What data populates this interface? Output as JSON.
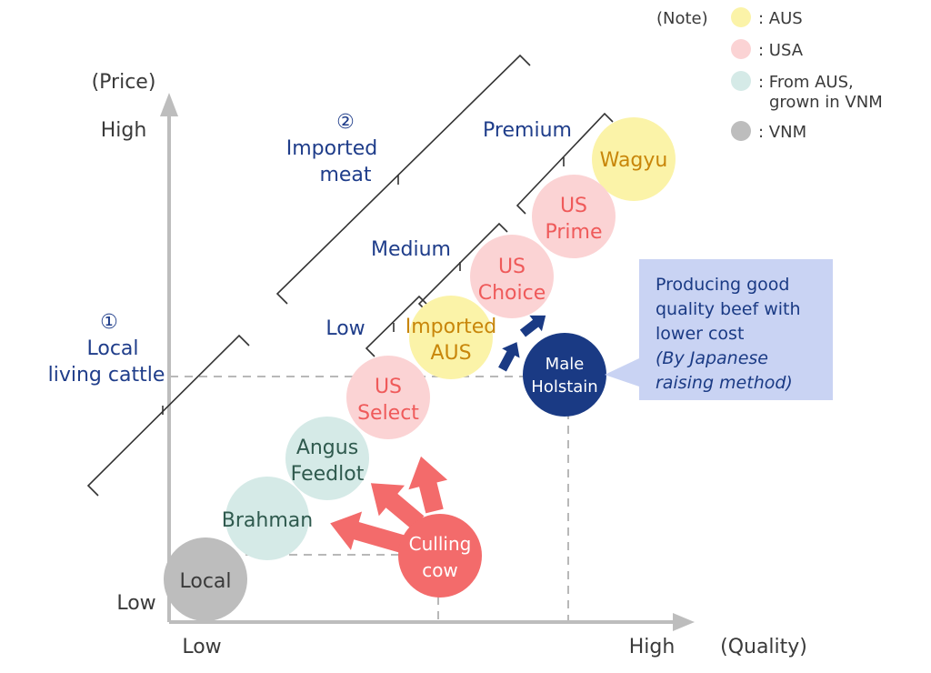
{
  "axes": {
    "y_title": "(Price)",
    "y_high": "High",
    "y_low": "Low",
    "x_title": "(Quality)",
    "x_high": "High",
    "x_low": "Low"
  },
  "legend": {
    "title": "(Note)",
    "items": [
      {
        "color": "#fbf3a8",
        "label_lines": [
          ": AUS"
        ]
      },
      {
        "color": "#fbd3d4",
        "label_lines": [
          ": USA"
        ]
      },
      {
        "color": "#d5eae7",
        "label_lines": [
          ": From AUS,",
          "grown in VNM"
        ]
      },
      {
        "color": "#bdbdbd",
        "label_lines": [
          ": VNM"
        ]
      }
    ]
  },
  "groups": {
    "imported": {
      "number": "②",
      "lines": [
        "Imported",
        "meat"
      ]
    },
    "local": {
      "number": "①",
      "lines": [
        "Local",
        "living cattle"
      ]
    },
    "premium": "Premium",
    "medium": "Medium",
    "low": "Low"
  },
  "products": [
    {
      "id": "wagyu",
      "lines": [
        "Wagyu"
      ],
      "fill": "#fbf3a8",
      "text_color": "#c8860a"
    },
    {
      "id": "us-prime",
      "lines": [
        "US",
        "Prime"
      ],
      "fill": "#fbd3d4",
      "text_color": "#ef5a5a"
    },
    {
      "id": "us-choice",
      "lines": [
        "US",
        "Choice"
      ],
      "fill": "#fbd3d4",
      "text_color": "#ef5a5a"
    },
    {
      "id": "imported-aus",
      "lines": [
        "Imported",
        "AUS"
      ],
      "fill": "#fbf3a8",
      "text_color": "#c8860a"
    },
    {
      "id": "us-select",
      "lines": [
        "US",
        "Select"
      ],
      "fill": "#fbd3d4",
      "text_color": "#ef5a5a"
    },
    {
      "id": "angus-feedlot",
      "lines": [
        "Angus",
        "Feedlot"
      ],
      "fill": "#d5eae7",
      "text_color": "#2f5a4e"
    },
    {
      "id": "brahman",
      "lines": [
        "Brahman"
      ],
      "fill": "#d5eae7",
      "text_color": "#2f5a4e"
    },
    {
      "id": "local",
      "lines": [
        "Local"
      ],
      "fill": "#bdbdbd",
      "text_color": "#3a3a3a"
    },
    {
      "id": "culling-cow",
      "lines": [
        "Culling",
        "cow"
      ],
      "fill": "#f36b6b",
      "text_color": "#ffffff"
    },
    {
      "id": "male-holstain",
      "lines": [
        "Male",
        "Holstain"
      ],
      "fill": "#1a3a84",
      "text_color": "#ffffff"
    }
  ],
  "callout": {
    "lines": [
      "Producing good",
      "quality beef with",
      "lower cost"
    ],
    "italic_lines": [
      "(By Japanese",
      "raising method)"
    ],
    "fill": "#c9d3f3",
    "text_color": "#1a3a84"
  },
  "colors": {
    "axis": "#bdbdbd",
    "label_blue": "#1f3d8a",
    "text_gray": "#3a3a3a",
    "arrow_red": "#f36b6b",
    "arrow_blue": "#1a3a84",
    "dashed": "#b8b8b8"
  }
}
